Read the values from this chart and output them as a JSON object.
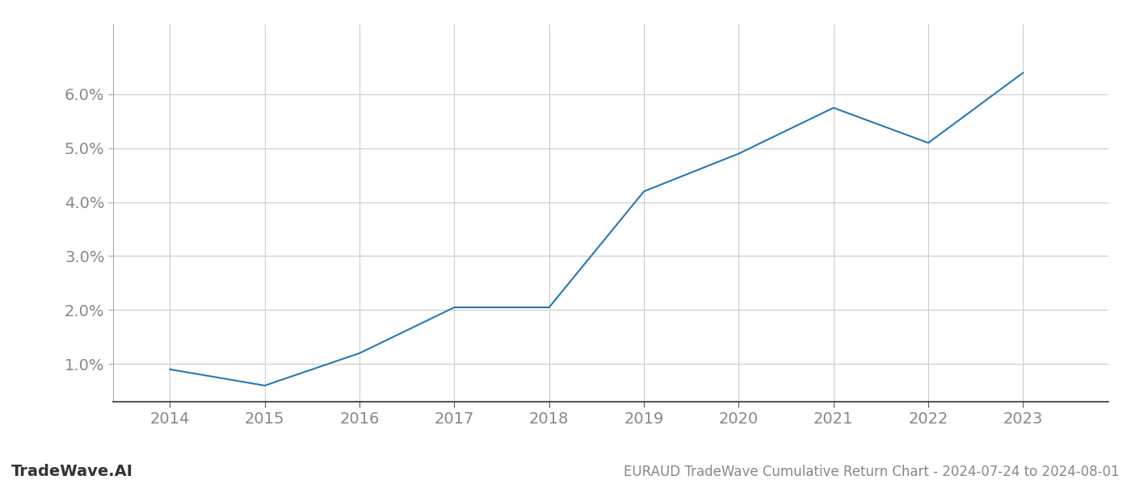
{
  "years": [
    2014,
    2015,
    2016,
    2017,
    2018,
    2019,
    2020,
    2021,
    2022,
    2023
  ],
  "values": [
    0.009,
    0.006,
    0.012,
    0.0205,
    0.0205,
    0.042,
    0.049,
    0.0575,
    0.051,
    0.064
  ],
  "line_color": "#2878b5",
  "line_width": 1.5,
  "background_color": "#ffffff",
  "grid_color": "#cccccc",
  "title": "EURAUD TradeWave Cumulative Return Chart - 2024-07-24 to 2024-08-01",
  "watermark": "TradeWave.AI",
  "xlim": [
    2013.4,
    2023.9
  ],
  "ylim": [
    0.003,
    0.073
  ],
  "yticks": [
    0.01,
    0.02,
    0.03,
    0.04,
    0.05,
    0.06
  ],
  "ytick_labels": [
    "1.0%",
    "2.0%",
    "3.0%",
    "4.0%",
    "5.0%",
    "6.0%"
  ],
  "xticks": [
    2014,
    2015,
    2016,
    2017,
    2018,
    2019,
    2020,
    2021,
    2022,
    2023
  ],
  "tick_fontsize": 14,
  "title_fontsize": 12,
  "watermark_fontsize": 14
}
